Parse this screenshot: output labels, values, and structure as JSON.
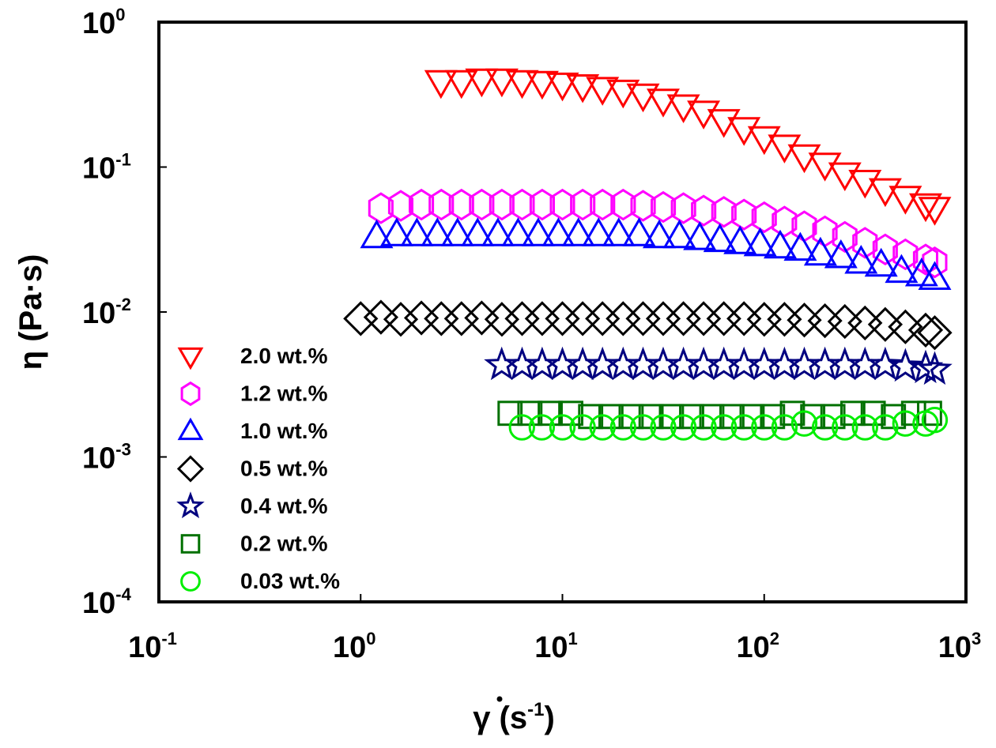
{
  "chart_data": {
    "type": "scatter",
    "title": "",
    "xlabel": "γ̇ (s-1)",
    "xlabel_parts": {
      "symbol": "γ",
      "unit_base": "s",
      "unit_exp": "-1"
    },
    "ylabel": "η (Pa·s)",
    "xscale": "log",
    "yscale": "log",
    "xlim": [
      0.1,
      1000
    ],
    "ylim": [
      0.0001,
      1
    ],
    "grid": false,
    "legend_position": "bottom-left",
    "x_ticks": [
      {
        "value": 0.1,
        "base": "10",
        "exp": "-1"
      },
      {
        "value": 1,
        "base": "10",
        "exp": "0"
      },
      {
        "value": 10,
        "base": "10",
        "exp": "1"
      },
      {
        "value": 100,
        "base": "10",
        "exp": "2"
      },
      {
        "value": 1000,
        "base": "10",
        "exp": "3"
      }
    ],
    "y_ticks": [
      {
        "value": 1,
        "base": "10",
        "exp": "0"
      },
      {
        "value": 0.1,
        "base": "10",
        "exp": "-1"
      },
      {
        "value": 0.01,
        "base": "10",
        "exp": "-2"
      },
      {
        "value": 0.001,
        "base": "10",
        "exp": "-3"
      },
      {
        "value": 0.0001,
        "base": "10",
        "exp": "-4"
      }
    ],
    "series": [
      {
        "name": "2.0 wt.%",
        "marker": "triangle-down",
        "color": "#ff0000",
        "x": [
          2.5,
          3.16,
          3.98,
          5.01,
          6.31,
          7.94,
          10,
          12.6,
          15.8,
          20,
          25.1,
          31.6,
          39.8,
          50.1,
          63.1,
          79.4,
          100,
          126,
          158,
          200,
          251,
          316,
          398,
          501,
          631,
          700
        ],
        "y": [
          0.39,
          0.39,
          0.4,
          0.4,
          0.39,
          0.385,
          0.375,
          0.365,
          0.35,
          0.335,
          0.315,
          0.29,
          0.265,
          0.24,
          0.21,
          0.185,
          0.16,
          0.14,
          0.12,
          0.105,
          0.09,
          0.08,
          0.07,
          0.062,
          0.055,
          0.052
        ]
      },
      {
        "name": "1.2 wt.%",
        "marker": "hexagon",
        "color": "#ff00ff",
        "x": [
          1.26,
          1.58,
          2,
          2.51,
          3.16,
          3.98,
          5.01,
          6.31,
          7.94,
          10,
          12.6,
          15.8,
          20,
          25.1,
          31.6,
          39.8,
          50.1,
          63.1,
          79.4,
          100,
          126,
          158,
          200,
          251,
          316,
          398,
          501,
          631,
          700
        ],
        "y": [
          0.052,
          0.054,
          0.055,
          0.055,
          0.055,
          0.055,
          0.055,
          0.055,
          0.055,
          0.055,
          0.055,
          0.055,
          0.055,
          0.054,
          0.053,
          0.052,
          0.05,
          0.049,
          0.047,
          0.045,
          0.042,
          0.039,
          0.036,
          0.033,
          0.03,
          0.027,
          0.025,
          0.023,
          0.022
        ]
      },
      {
        "name": "1.0 wt.%",
        "marker": "triangle-up",
        "color": "#0000ff",
        "x": [
          1.2,
          1.51,
          1.9,
          2.4,
          3.02,
          3.8,
          4.79,
          6.03,
          7.59,
          9.55,
          12,
          15.1,
          19,
          24,
          30.2,
          38,
          47.9,
          60.3,
          75.9,
          95.5,
          120,
          151,
          190,
          240,
          302,
          380,
          479,
          603,
          700
        ],
        "y": [
          0.033,
          0.034,
          0.034,
          0.034,
          0.034,
          0.034,
          0.034,
          0.034,
          0.034,
          0.034,
          0.034,
          0.034,
          0.034,
          0.034,
          0.033,
          0.033,
          0.032,
          0.031,
          0.03,
          0.029,
          0.028,
          0.027,
          0.025,
          0.024,
          0.022,
          0.021,
          0.019,
          0.018,
          0.017
        ]
      },
      {
        "name": "0.5 wt.%",
        "marker": "diamond",
        "color": "#000000",
        "x": [
          1,
          1.26,
          1.58,
          2,
          2.51,
          3.16,
          3.98,
          5.01,
          6.31,
          7.94,
          10,
          12.6,
          15.8,
          20,
          25.1,
          31.6,
          39.8,
          50.1,
          63.1,
          79.4,
          100,
          126,
          158,
          200,
          251,
          316,
          398,
          501,
          631,
          700
        ],
        "y": [
          0.009,
          0.0092,
          0.0089,
          0.0091,
          0.009,
          0.009,
          0.0091,
          0.0089,
          0.009,
          0.009,
          0.009,
          0.009,
          0.009,
          0.009,
          0.009,
          0.009,
          0.009,
          0.009,
          0.009,
          0.009,
          0.0089,
          0.0089,
          0.0088,
          0.0087,
          0.0086,
          0.0084,
          0.0082,
          0.0079,
          0.0075,
          0.0072
        ]
      },
      {
        "name": "0.4 wt.%",
        "marker": "star",
        "color": "#000080",
        "x": [
          5,
          6.31,
          7.94,
          10,
          12.6,
          15.8,
          20,
          25.1,
          31.6,
          39.8,
          50.1,
          63.1,
          79.4,
          100,
          126,
          158,
          200,
          251,
          316,
          398,
          501,
          631,
          700
        ],
        "y": [
          0.0043,
          0.0043,
          0.0043,
          0.0043,
          0.0043,
          0.0043,
          0.0043,
          0.0043,
          0.0043,
          0.0043,
          0.0043,
          0.0043,
          0.0043,
          0.0043,
          0.0043,
          0.0043,
          0.0043,
          0.0043,
          0.0043,
          0.0043,
          0.0042,
          0.0041,
          0.004
        ]
      },
      {
        "name": "0.2 wt.%",
        "marker": "square",
        "color": "#007000",
        "x": [
          5.5,
          6.9,
          8.7,
          11,
          13.8,
          17.4,
          21.9,
          27.5,
          34.7,
          43.7,
          55,
          69.2,
          87.1,
          110,
          138,
          174,
          219,
          275,
          347,
          437,
          550,
          660
        ],
        "y": [
          0.002,
          0.002,
          0.002,
          0.002,
          0.0019,
          0.0019,
          0.0019,
          0.0019,
          0.0019,
          0.0019,
          0.0019,
          0.0019,
          0.0019,
          0.0019,
          0.002,
          0.0019,
          0.0019,
          0.002,
          0.002,
          0.0019,
          0.002,
          0.002
        ]
      },
      {
        "name": "0.03 wt.%",
        "marker": "circle",
        "color": "#00ee00",
        "x": [
          6.3,
          7.9,
          10,
          12.6,
          15.8,
          20,
          25.1,
          31.6,
          39.8,
          50.1,
          63.1,
          79.4,
          100,
          126,
          158,
          200,
          251,
          316,
          398,
          501,
          631,
          700
        ],
        "y": [
          0.0016,
          0.0016,
          0.0016,
          0.0016,
          0.0016,
          0.0016,
          0.0016,
          0.0016,
          0.0016,
          0.0016,
          0.0016,
          0.0016,
          0.0016,
          0.0016,
          0.0017,
          0.0016,
          0.0016,
          0.0016,
          0.0016,
          0.0017,
          0.0017,
          0.0018
        ]
      }
    ]
  }
}
